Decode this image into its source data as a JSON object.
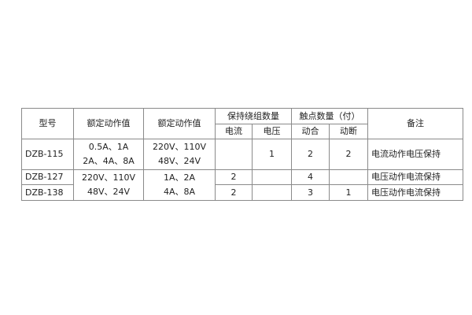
{
  "headers": {
    "model": "型号",
    "rated_action_1": "额定动作值",
    "rated_action_2": "额定动作值",
    "holding_winding_count": "保持绕组数量",
    "contacts_count": "触点数量（付）",
    "remarks": "备注",
    "current": "电流",
    "voltage": "电压",
    "make": "动合",
    "break": "动断"
  },
  "rows": [
    {
      "model": "DZB-115",
      "rated_1": [
        "0.5A、1A",
        "2A、4A、8A"
      ],
      "rated_2": [
        "220V、110V",
        "48V、24V"
      ],
      "current": "",
      "voltage": "1",
      "make": "2",
      "break": "2",
      "remark": "电流动作电压保持"
    },
    {
      "model": "DZB-127",
      "rated_1": [
        "220V、110V",
        "48V、24V"
      ],
      "rated_2": [
        "1A、2A",
        "4A、8A"
      ],
      "current": "2",
      "voltage": "",
      "make": "4",
      "break": "",
      "remark": "电压动作电流保持"
    },
    {
      "model": "DZB-138",
      "current": "2",
      "voltage": "",
      "make": "3",
      "break": "1",
      "remark": "电压动作电流保持"
    }
  ]
}
